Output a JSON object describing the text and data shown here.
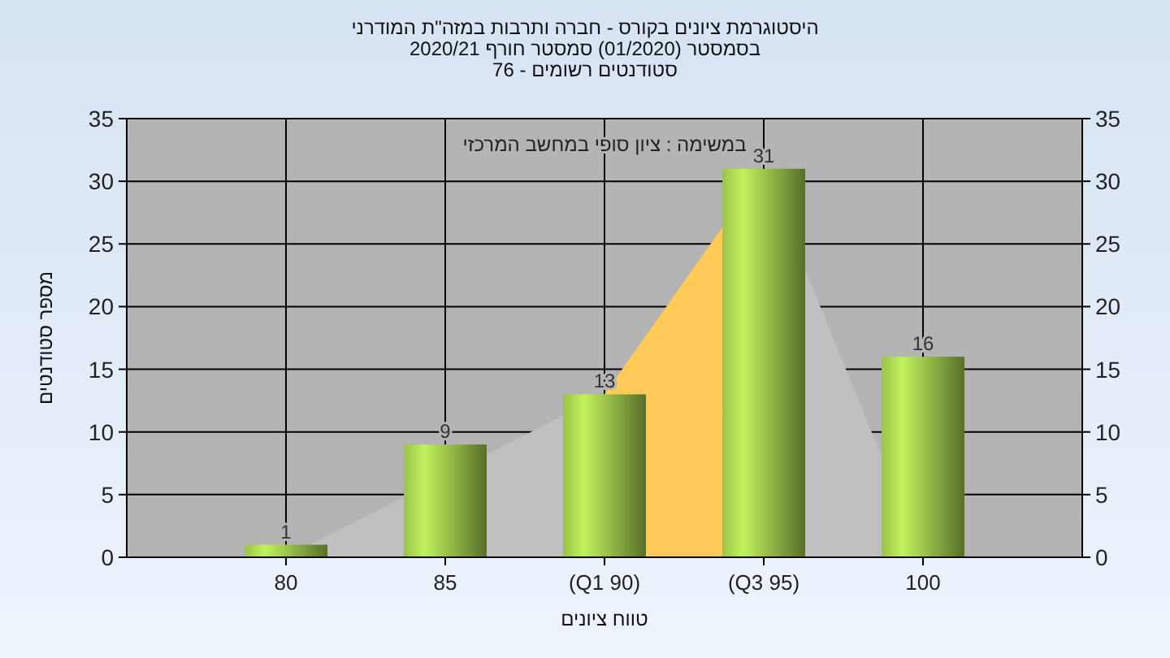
{
  "chart_data": {
    "type": "bar",
    "title": "היסטוגרמת ציונים בקורס - חברה ותרבות במזה\"ת המודרני",
    "subtitle": "בסמסטר  (01/2020)  סמסטר חורף 2020/21\nסטודנטים רשומים - 76",
    "xlabel": "טווח ציונים",
    "ylabel": "מספר סטודנטים",
    "annotations": [
      "במשימה : ציון סופי במחשב המרכזי"
    ],
    "categories": [
      "80",
      "85",
      "(Q1 90)",
      "(Q3 95)",
      "100"
    ],
    "series": [
      {
        "type": "area",
        "color": "#c0c0c0",
        "values": [
          0,
          null,
          13,
          31,
          0
        ]
      },
      {
        "type": "area",
        "color": "#ffca58",
        "values": [
          null,
          null,
          13,
          31,
          null
        ]
      },
      {
        "color": "#9bc34a",
        "values": [
          1,
          9,
          13,
          31,
          16
        ],
        "value_labels": [
          "1",
          "9",
          "13",
          "31",
          "16"
        ]
      }
    ],
    "ylim": [
      0,
      35
    ],
    "yticks": [
      0,
      5,
      10,
      15,
      20,
      25,
      30,
      35
    ],
    "y2lim": [
      0,
      35
    ],
    "y2ticks": [
      0,
      5,
      10,
      15,
      20,
      25,
      30,
      35
    ],
    "grid": true
  }
}
